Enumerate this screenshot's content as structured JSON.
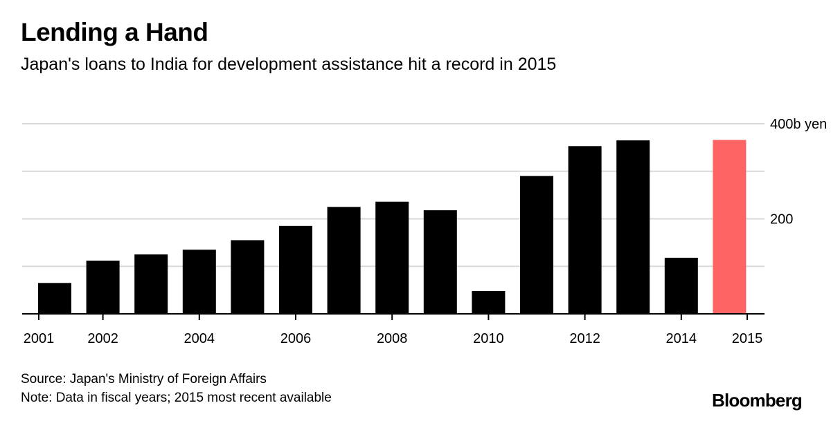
{
  "header": {
    "title": "Lending a Hand",
    "subtitle": "Japan's loans to India for development assistance hit a record in 2015"
  },
  "footer": {
    "source": "Source: Japan's Ministry of Foreign Affairs",
    "note": "Note: Data in fiscal years; 2015 most recent available",
    "brand": "Bloomberg"
  },
  "colors": {
    "bar": "#000000",
    "highlight": "#ff6464",
    "grid": "#d9d9d9"
  },
  "chart_data": {
    "type": "bar",
    "title": "Lending a Hand",
    "subtitle": "Japan's loans to India for development assistance hit a record in 2015",
    "xlabel": "",
    "ylabel": "billion yen",
    "unit_label": "400b yen",
    "categories": [
      "2001",
      "2002",
      "2003",
      "2004",
      "2005",
      "2006",
      "2007",
      "2008",
      "2009",
      "2010",
      "2011",
      "2012",
      "2013",
      "2014",
      "2015"
    ],
    "values": [
      65,
      112,
      125,
      135,
      155,
      185,
      225,
      236,
      218,
      48,
      290,
      353,
      365,
      118,
      366
    ],
    "highlight_index": 14,
    "ylim": [
      0,
      400
    ],
    "y_gridlines": [
      0,
      100,
      200,
      300,
      400
    ],
    "y_tick_labels": [
      {
        "value": 400,
        "label": "400b yen"
      },
      {
        "value": 200,
        "label": "200"
      }
    ],
    "x_tick_labels": [
      "2001",
      "2002",
      "2004",
      "2006",
      "2008",
      "2010",
      "2012",
      "2014",
      "2015"
    ],
    "grid": true,
    "legend": "none"
  }
}
